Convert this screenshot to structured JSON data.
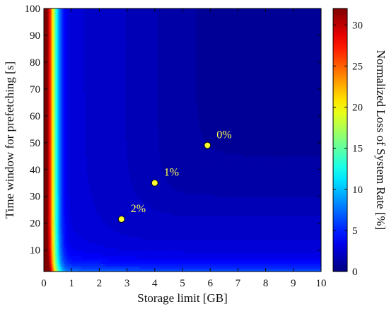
{
  "chart_data": {
    "type": "heatmap",
    "title": "",
    "xlabel": "Storage limit [GB]",
    "ylabel": "Time window for prefetching [s]",
    "colorbar_label": "Normalized Loss of System Rate [%]",
    "xlim": [
      0,
      10
    ],
    "ylim": [
      2,
      100
    ],
    "clim": [
      0,
      32
    ],
    "colormap": "jet",
    "x_ticks": [
      0,
      1,
      2,
      3,
      4,
      5,
      6,
      7,
      8,
      9,
      10
    ],
    "y_ticks": [
      10,
      20,
      30,
      40,
      50,
      60,
      70,
      80,
      90,
      100
    ],
    "colorbar_ticks": [
      0,
      5,
      10,
      15,
      20,
      25,
      30
    ],
    "x_tick_labels": [
      "0",
      "1",
      "2",
      "3",
      "4",
      "5",
      "6",
      "7",
      "8",
      "9",
      "10"
    ],
    "y_tick_labels": [
      "10",
      "20",
      "30",
      "40",
      "50",
      "60",
      "70",
      "80",
      "90",
      "100"
    ],
    "colorbar_tick_labels": [
      "0",
      "5",
      "10",
      "15",
      "20",
      "25",
      "30"
    ],
    "annotations": [
      {
        "label": "0%",
        "x": 5.9,
        "y": 49
      },
      {
        "label": "1%",
        "x": 4.0,
        "y": 35
      },
      {
        "label": "2%",
        "x": 2.8,
        "y": 21.5
      }
    ]
  }
}
